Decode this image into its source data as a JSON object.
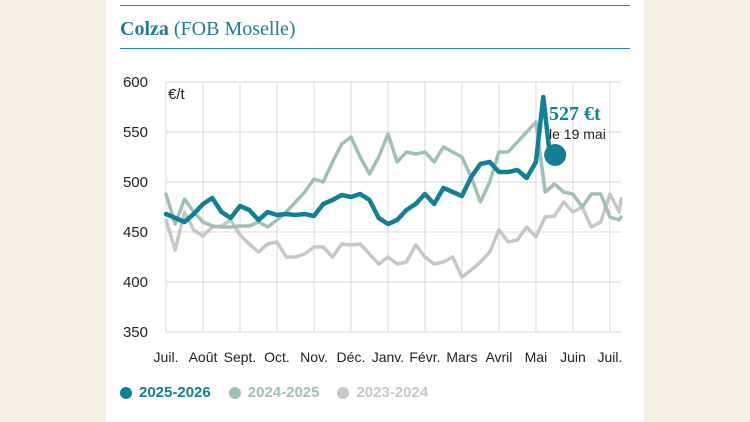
{
  "header": {
    "title_bold": "Colza",
    "title_rest": "(FOB Moselle)"
  },
  "chart_data": {
    "type": "line",
    "unit_label": "€/t",
    "ylim": [
      350,
      600
    ],
    "yticks": [
      350,
      400,
      450,
      500,
      550,
      600
    ],
    "xlim": [
      0,
      12.3
    ],
    "month_ticks": [
      "Juil.",
      "Août",
      "Sept.",
      "Oct.",
      "Nov.",
      "Déc.",
      "Janv.",
      "Févr.",
      "Mars",
      "Avril",
      "Mai",
      "Juin",
      "Juil."
    ],
    "grid": true,
    "legend_position": "bottom",
    "annotation": {
      "value_text": "527 €t",
      "date_text": "le 19 mai",
      "x": 10.52,
      "y": 527
    },
    "series": [
      {
        "name": "2025-2026",
        "color": "#127f96",
        "x": [
          0.0,
          0.25,
          0.5,
          0.75,
          1.0,
          1.25,
          1.5,
          1.75,
          2.0,
          2.25,
          2.5,
          2.75,
          3.0,
          3.25,
          3.5,
          3.75,
          4.0,
          4.25,
          4.5,
          4.75,
          5.0,
          5.25,
          5.5,
          5.75,
          6.0,
          6.25,
          6.5,
          6.75,
          7.0,
          7.25,
          7.5,
          7.75,
          8.0,
          8.25,
          8.5,
          8.75,
          9.0,
          9.25,
          9.5,
          9.75,
          10.0,
          10.2,
          10.35,
          10.52
        ],
        "values": [
          468,
          464,
          460,
          468,
          478,
          484,
          470,
          464,
          476,
          472,
          462,
          470,
          467,
          468,
          467,
          468,
          466,
          478,
          482,
          487,
          485,
          488,
          482,
          464,
          458,
          462,
          472,
          478,
          488,
          478,
          494,
          490,
          486,
          505,
          518,
          520,
          510,
          510,
          512,
          504,
          520,
          585,
          535,
          527
        ]
      },
      {
        "name": "2024-2025",
        "color": "#9fc0b7",
        "x": [
          0.0,
          0.25,
          0.5,
          0.75,
          1.0,
          1.25,
          1.5,
          1.75,
          2.0,
          2.25,
          2.5,
          2.75,
          3.0,
          3.25,
          3.5,
          3.75,
          4.0,
          4.25,
          4.5,
          4.75,
          5.0,
          5.25,
          5.5,
          5.75,
          6.0,
          6.25,
          6.5,
          6.75,
          7.0,
          7.25,
          7.5,
          7.75,
          8.0,
          8.25,
          8.5,
          8.75,
          9.0,
          9.25,
          9.5,
          9.75,
          10.0,
          10.25,
          10.5,
          10.75,
          11.0,
          11.25,
          11.5,
          11.75,
          12.0,
          12.25,
          12.3
        ],
        "values": [
          488,
          458,
          483,
          470,
          460,
          456,
          455,
          455,
          456,
          456,
          460,
          455,
          462,
          470,
          480,
          490,
          503,
          500,
          520,
          538,
          545,
          525,
          508,
          525,
          548,
          520,
          530,
          528,
          530,
          520,
          535,
          530,
          525,
          505,
          480,
          500,
          530,
          530,
          540,
          550,
          560,
          490,
          498,
          490,
          488,
          475,
          488,
          488,
          465,
          462,
          465
        ]
      },
      {
        "name": "2023-2024",
        "color": "#c7c7c7",
        "x": [
          0.0,
          0.25,
          0.5,
          0.75,
          1.0,
          1.25,
          1.5,
          1.75,
          2.0,
          2.25,
          2.5,
          2.75,
          3.0,
          3.25,
          3.5,
          3.75,
          4.0,
          4.25,
          4.5,
          4.75,
          5.0,
          5.25,
          5.5,
          5.75,
          6.0,
          6.25,
          6.5,
          6.75,
          7.0,
          7.25,
          7.5,
          7.75,
          8.0,
          8.25,
          8.5,
          8.75,
          9.0,
          9.25,
          9.5,
          9.75,
          10.0,
          10.25,
          10.5,
          10.75,
          11.0,
          11.25,
          11.5,
          11.75,
          12.0,
          12.25,
          12.3
        ],
        "values": [
          462,
          432,
          470,
          452,
          446,
          455,
          456,
          462,
          447,
          438,
          430,
          438,
          440,
          425,
          425,
          428,
          435,
          435,
          425,
          438,
          437,
          438,
          428,
          418,
          425,
          418,
          420,
          437,
          425,
          418,
          420,
          425,
          405,
          412,
          420,
          430,
          452,
          440,
          442,
          455,
          445,
          465,
          466,
          480,
          470,
          475,
          455,
          460,
          488,
          470,
          483
        ]
      }
    ]
  }
}
